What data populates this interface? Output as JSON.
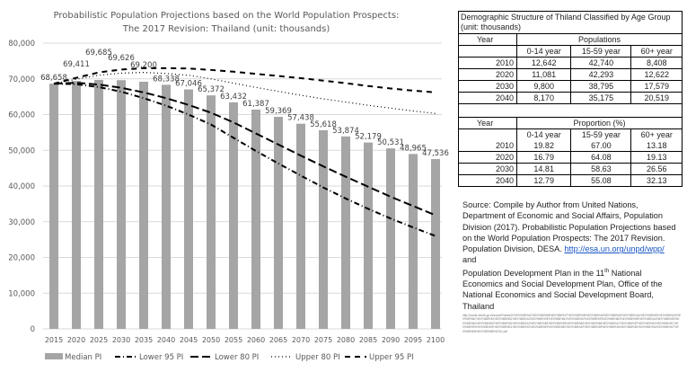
{
  "chart_data": {
    "type": "bar+line",
    "title": [
      "Probabilistic Population Projections based on the World Population Prospects:",
      "The 2017 Revision: Thailand (unit: thousands)"
    ],
    "xlabel": "",
    "ylabel": "",
    "ylim": [
      0,
      80000
    ],
    "yticks": [
      "0",
      "10,000",
      "20,000",
      "30,000",
      "40,000",
      "50,000",
      "60,000",
      "70,000",
      "80,000"
    ],
    "grid": true,
    "legend_position": "bottom",
    "categories": [
      "2015",
      "2020",
      "2025",
      "2030",
      "2035",
      "2040",
      "2045",
      "2050",
      "2055",
      "2060",
      "2065",
      "2070",
      "2075",
      "2080",
      "2085",
      "2090",
      "2095",
      "2100"
    ],
    "series": [
      {
        "name": "Median PI",
        "type": "bar",
        "color": "#a5a5a5",
        "values": [
          68658,
          69411,
          69685,
          69626,
          69200,
          68338,
          67046,
          65372,
          63432,
          61387,
          59369,
          57438,
          55618,
          53874,
          52179,
          50531,
          48965,
          47536
        ],
        "labels": [
          "68,658",
          "69,411",
          "69,685",
          "69,626",
          "69,200",
          "68,338",
          "67,046",
          "65,372",
          "63,432",
          "61,387",
          "59,369",
          "57,438",
          "55,618",
          "53,874",
          "52,179",
          "50,531",
          "48,965",
          "47,536"
        ]
      },
      {
        "name": "Lower 95 PI",
        "type": "line",
        "dash": "6 3 1 3",
        "values": [
          68658,
          68500,
          67700,
          66400,
          64600,
          62500,
          60000,
          57200,
          53500,
          49800,
          46300,
          42900,
          39600,
          36500,
          33600,
          30900,
          28400,
          26000
        ]
      },
      {
        "name": "Lower 80 PI",
        "type": "line",
        "dash": "9 4",
        "values": [
          68658,
          68900,
          68400,
          67500,
          66200,
          64600,
          62700,
          60500,
          57800,
          54700,
          51600,
          48500,
          45500,
          42600,
          39800,
          37000,
          34400,
          31800
        ]
      },
      {
        "name": "Upper 80 PI",
        "type": "line",
        "dash": "1 3",
        "values": [
          68658,
          69900,
          71000,
          71600,
          71800,
          71500,
          71000,
          70000,
          68800,
          67600,
          66500,
          65400,
          64400,
          63500,
          62600,
          61800,
          61000,
          60300
        ]
      },
      {
        "name": "Upper 95 PI",
        "type": "line",
        "dash": "6 5",
        "values": [
          68658,
          70300,
          71800,
          72600,
          73000,
          73000,
          72900,
          72500,
          72000,
          71400,
          70800,
          70200,
          69500,
          68800,
          68000,
          67300,
          66700,
          66200
        ]
      }
    ]
  },
  "table": {
    "caption": "Demographic Structure of Thiland Classified by Age Group (unit: thousands)",
    "year_header": "Year",
    "populations_header": "Populations",
    "proportion_header": "Proportion (%)",
    "age_groups": [
      "0-14 year",
      "15-59 year",
      "60+ year"
    ],
    "populations": [
      [
        "2010",
        "12,642",
        "42,740",
        "8,408"
      ],
      [
        "2020",
        "11,081",
        "42,293",
        "12,622"
      ],
      [
        "2030",
        "9,800",
        "38,795",
        "17,579"
      ],
      [
        "2040",
        "8,170",
        "35,175",
        "20,519"
      ]
    ],
    "proportions": [
      [
        "2010",
        "19.82",
        "67.00",
        "13.18"
      ],
      [
        "2020",
        "16.79",
        "64.08",
        "19.13"
      ],
      [
        "2030",
        "14.81",
        "58.63",
        "26.56"
      ],
      [
        "2040",
        "12.79",
        "55.08",
        "32.13"
      ]
    ]
  },
  "source": {
    "text1": "Source: Compile by Author from United Nations, Department of Economic and Social Affairs, Population Division (2017). Probabilistic Population Projections based on the World Population Prospects: The 2017 Revision. Population Division, DESA. ",
    "link": "http://esa.un.org/unpd/wpp/",
    "and": "and",
    "text2a": "Population Development Plan in the 11",
    "sup": "th",
    "text2b": " National Economics and Social Development Plan, Office of the National Economics and Social Development Board, Thailand",
    "url_small": "http://social.nesdb.go.th/social/Portals/0/%E0%B8%A2%E0%B8%B8%E0%B8%97%E0%B8%98%E0%B8%A8%E0%B8%B2%E0%B8%AA%E0%B8%95%E0%B8%A3%E0%B9%8C%E0%B8%81%E0%B8%B2%E0%B8%A3%E0%B8%9E%E0%B8%B1%E0%B8%92%E0%B8%99%E0%B8%B2%E0%B8%9B%E0%B8%A3%E0%B8%B0%E0%B8%8A%E0%B8%B2%E0%B8%81%E0%B8%A3%E0%B9%83%E0%B8%99%E0%B8%8A%E0%B9%88%E0%B8%A7%E0%B8%87%E0%B9%81%E0%B8%9C%E0%B8%99%E0%B8%9E%E0%B8%B1%E0%B8%92%E0%B8%99%E0%B8%B2%E0%B8%AF%E0%B8%89%E0%B8%9A%E0%B8%B1%E0%B8%9A%E0%B8%97%E0%B8%B5%E0%B9%88%2011.pdf"
  }
}
